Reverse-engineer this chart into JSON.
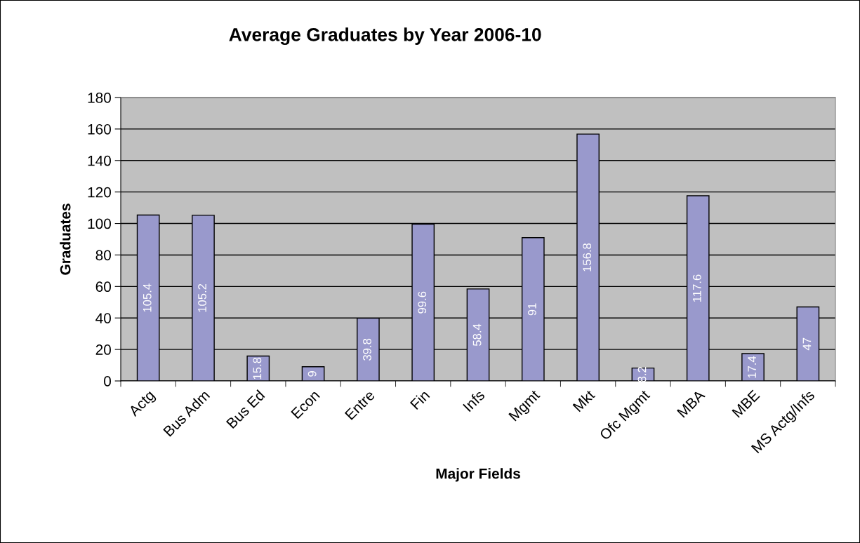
{
  "chart_data": {
    "type": "bar",
    "title": "Average Graduates by Year 2006-10",
    "xlabel": "Major Fields",
    "ylabel": "Graduates",
    "categories": [
      "Actg",
      "Bus Adm",
      "Bus Ed",
      "Econ",
      "Entre",
      "Fin",
      "Infs",
      "Mgmt",
      "Mkt",
      "Ofc Mgmt",
      "MBA",
      "MBE",
      "MS Actg/Infs"
    ],
    "values": [
      105.4,
      105.2,
      15.8,
      9,
      39.8,
      99.6,
      58.4,
      91,
      156.8,
      8.2,
      117.6,
      17.4,
      47
    ],
    "color": "#9999cc",
    "ylim": [
      0,
      180
    ],
    "yticks": [
      0,
      20,
      40,
      60,
      80,
      100,
      120,
      140,
      160,
      180
    ],
    "grid": "y",
    "legend": false,
    "data_labels": true
  }
}
